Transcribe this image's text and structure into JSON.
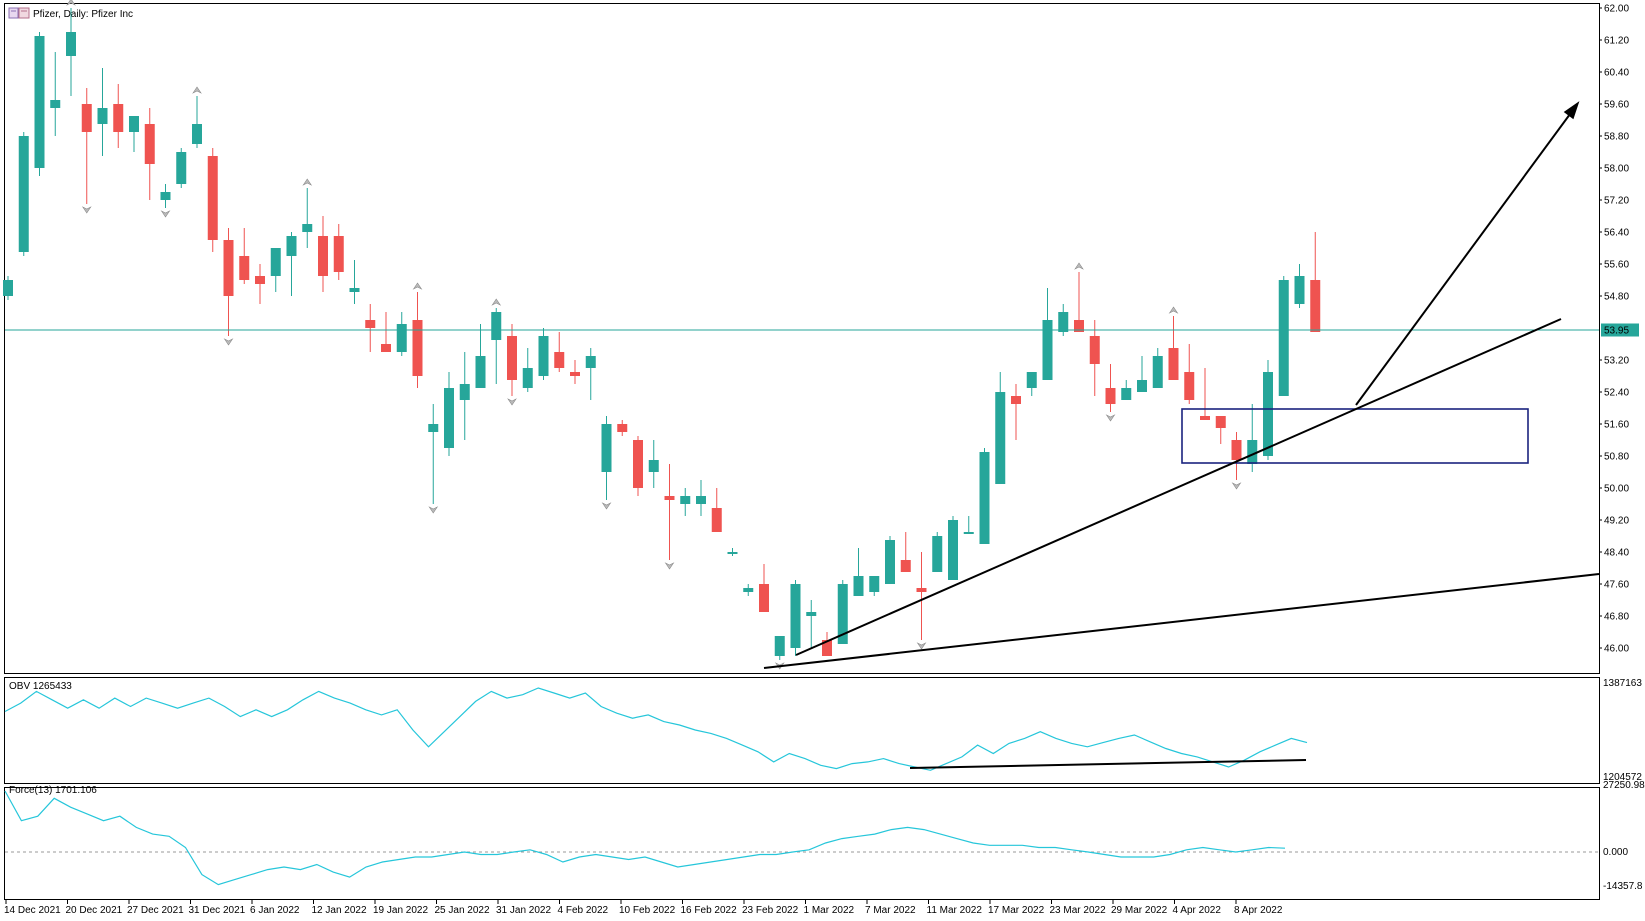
{
  "header": {
    "title": "Pfizer, Daily:  Pfizer Inc"
  },
  "colors": {
    "bull": "#26a69a",
    "bear": "#ef5350",
    "indicator_line": "#26c6da",
    "box": "#1a237e",
    "trendline": "#000000",
    "current_price_bg": "#26a69a"
  },
  "price_axis": {
    "ticks": [
      "62.00",
      "61.20",
      "60.40",
      "59.60",
      "58.80",
      "58.00",
      "57.20",
      "56.40",
      "55.60",
      "54.80",
      "53.20",
      "52.40",
      "51.60",
      "50.80",
      "50.00",
      "49.20",
      "48.40",
      "47.60",
      "46.80",
      "46.00"
    ],
    "current_price": "53.95"
  },
  "x_axis": {
    "ticks": [
      "14 Dec 2021",
      "20 Dec 2021",
      "27 Dec 2021",
      "31 Dec 2021",
      "6 Jan 2022",
      "12 Jan 2022",
      "19 Jan 2022",
      "25 Jan 2022",
      "31 Jan 2022",
      "4 Feb 2022",
      "10 Feb 2022",
      "16 Feb 2022",
      "23 Feb 2022",
      "1 Mar 2022",
      "7 Mar 2022",
      "11 Mar 2022",
      "17 Mar 2022",
      "23 Mar 2022",
      "29 Mar 2022",
      "4 Apr 2022",
      "8 Apr 2022"
    ]
  },
  "obv_panel": {
    "label": "OBV 1265433",
    "axis_top": "1387163",
    "axis_bottom": "1204572"
  },
  "force_panel": {
    "label": "Force(13) 1701.106",
    "axis_top": "27250.98",
    "axis_mid": "0.000",
    "axis_bottom": "-14357.8"
  },
  "chart_data": {
    "type": "candlestick",
    "title": "Pfizer, Daily:  Pfizer Inc",
    "ylim": [
      45.6,
      62.0
    ],
    "horizontal_line": 53.95,
    "candles": [
      {
        "o": 54.8,
        "h": 55.3,
        "l": 54.7,
        "c": 55.2
      },
      {
        "o": 55.9,
        "h": 58.9,
        "l": 55.8,
        "c": 58.8
      },
      {
        "o": 58.0,
        "h": 61.4,
        "l": 57.8,
        "c": 61.3
      },
      {
        "o": 59.5,
        "h": 60.9,
        "l": 58.8,
        "c": 59.7
      },
      {
        "o": 60.8,
        "h": 62.0,
        "l": 59.8,
        "c": 61.4
      },
      {
        "o": 59.6,
        "h": 60.0,
        "l": 57.1,
        "c": 58.9
      },
      {
        "o": 59.1,
        "h": 60.5,
        "l": 58.3,
        "c": 59.5
      },
      {
        "o": 59.6,
        "h": 60.1,
        "l": 58.5,
        "c": 58.9
      },
      {
        "o": 58.9,
        "h": 59.3,
        "l": 58.4,
        "c": 59.3
      },
      {
        "o": 59.1,
        "h": 59.5,
        "l": 57.2,
        "c": 58.1
      },
      {
        "o": 57.2,
        "h": 57.6,
        "l": 57.0,
        "c": 57.4
      },
      {
        "o": 57.6,
        "h": 58.5,
        "l": 57.5,
        "c": 58.4
      },
      {
        "o": 58.6,
        "h": 59.8,
        "l": 58.5,
        "c": 59.1
      },
      {
        "o": 58.3,
        "h": 58.5,
        "l": 55.9,
        "c": 56.2
      },
      {
        "o": 56.2,
        "h": 56.5,
        "l": 53.8,
        "c": 54.8
      },
      {
        "o": 55.8,
        "h": 56.5,
        "l": 55.1,
        "c": 55.2
      },
      {
        "o": 55.3,
        "h": 55.6,
        "l": 54.6,
        "c": 55.1
      },
      {
        "o": 55.3,
        "h": 56.0,
        "l": 54.9,
        "c": 56.0
      },
      {
        "o": 55.8,
        "h": 56.4,
        "l": 54.8,
        "c": 56.3
      },
      {
        "o": 56.4,
        "h": 57.5,
        "l": 56.0,
        "c": 56.6
      },
      {
        "o": 56.3,
        "h": 56.8,
        "l": 54.9,
        "c": 55.3
      },
      {
        "o": 56.3,
        "h": 56.6,
        "l": 55.2,
        "c": 55.4
      },
      {
        "o": 54.9,
        "h": 55.7,
        "l": 54.6,
        "c": 55.0
      },
      {
        "o": 54.2,
        "h": 54.6,
        "l": 53.4,
        "c": 54.0
      },
      {
        "o": 53.6,
        "h": 54.4,
        "l": 53.4,
        "c": 53.4
      },
      {
        "o": 53.4,
        "h": 54.4,
        "l": 53.3,
        "c": 54.1
      },
      {
        "o": 54.2,
        "h": 54.9,
        "l": 52.5,
        "c": 52.8
      },
      {
        "o": 51.4,
        "h": 52.1,
        "l": 49.6,
        "c": 51.6
      },
      {
        "o": 51.0,
        "h": 52.9,
        "l": 50.8,
        "c": 52.5
      },
      {
        "o": 52.2,
        "h": 53.4,
        "l": 51.2,
        "c": 52.6
      },
      {
        "o": 52.5,
        "h": 54.1,
        "l": 52.5,
        "c": 53.3
      },
      {
        "o": 53.7,
        "h": 54.5,
        "l": 52.6,
        "c": 54.4
      },
      {
        "o": 53.8,
        "h": 54.1,
        "l": 52.3,
        "c": 52.7
      },
      {
        "o": 52.5,
        "h": 53.5,
        "l": 52.4,
        "c": 53.0
      },
      {
        "o": 52.8,
        "h": 54.0,
        "l": 52.7,
        "c": 53.8
      },
      {
        "o": 53.4,
        "h": 53.9,
        "l": 52.9,
        "c": 53.0
      },
      {
        "o": 52.9,
        "h": 53.2,
        "l": 52.6,
        "c": 52.8
      },
      {
        "o": 53.0,
        "h": 53.5,
        "l": 52.2,
        "c": 53.3
      },
      {
        "o": 50.4,
        "h": 51.8,
        "l": 49.7,
        "c": 51.6
      },
      {
        "o": 51.6,
        "h": 51.7,
        "l": 51.3,
        "c": 51.4
      },
      {
        "o": 51.2,
        "h": 51.3,
        "l": 49.8,
        "c": 50.0
      },
      {
        "o": 50.4,
        "h": 51.2,
        "l": 50.0,
        "c": 50.7
      },
      {
        "o": 49.8,
        "h": 50.6,
        "l": 48.2,
        "c": 49.7
      },
      {
        "o": 49.6,
        "h": 50.0,
        "l": 49.3,
        "c": 49.8
      },
      {
        "o": 49.6,
        "h": 50.2,
        "l": 49.3,
        "c": 49.8
      },
      {
        "o": 49.5,
        "h": 50.0,
        "l": 48.9,
        "c": 48.9
      },
      {
        "o": 48.4,
        "h": 48.5,
        "l": 48.3,
        "c": 48.4
      },
      {
        "o": 47.4,
        "h": 47.6,
        "l": 47.3,
        "c": 47.5
      },
      {
        "o": 47.6,
        "h": 48.1,
        "l": 46.9,
        "c": 46.9
      },
      {
        "o": 45.8,
        "h": 46.3,
        "l": 45.7,
        "c": 46.3
      },
      {
        "o": 46.0,
        "h": 47.7,
        "l": 45.8,
        "c": 47.6
      },
      {
        "o": 46.8,
        "h": 47.2,
        "l": 46.0,
        "c": 46.9
      },
      {
        "o": 46.2,
        "h": 46.4,
        "l": 45.8,
        "c": 45.8
      },
      {
        "o": 46.1,
        "h": 47.7,
        "l": 46.1,
        "c": 47.6
      },
      {
        "o": 47.3,
        "h": 48.5,
        "l": 47.3,
        "c": 47.8
      },
      {
        "o": 47.4,
        "h": 47.8,
        "l": 47.3,
        "c": 47.8
      },
      {
        "o": 47.6,
        "h": 48.8,
        "l": 47.6,
        "c": 48.7
      },
      {
        "o": 48.2,
        "h": 48.9,
        "l": 47.9,
        "c": 47.9
      },
      {
        "o": 47.5,
        "h": 48.4,
        "l": 46.2,
        "c": 47.4
      },
      {
        "o": 47.9,
        "h": 48.9,
        "l": 47.9,
        "c": 48.8
      },
      {
        "o": 47.7,
        "h": 49.3,
        "l": 47.7,
        "c": 49.2
      },
      {
        "o": 48.9,
        "h": 49.3,
        "l": 48.9,
        "c": 48.9
      },
      {
        "o": 48.6,
        "h": 51.0,
        "l": 48.6,
        "c": 50.9
      },
      {
        "o": 50.1,
        "h": 52.9,
        "l": 50.1,
        "c": 52.4
      },
      {
        "o": 52.3,
        "h": 52.6,
        "l": 51.2,
        "c": 52.1
      },
      {
        "o": 52.5,
        "h": 52.9,
        "l": 52.3,
        "c": 52.9
      },
      {
        "o": 52.7,
        "h": 55.0,
        "l": 52.7,
        "c": 54.2
      },
      {
        "o": 53.9,
        "h": 54.6,
        "l": 53.8,
        "c": 54.4
      },
      {
        "o": 54.2,
        "h": 55.4,
        "l": 53.9,
        "c": 53.9
      },
      {
        "o": 53.8,
        "h": 54.2,
        "l": 52.3,
        "c": 53.1
      },
      {
        "o": 52.5,
        "h": 53.1,
        "l": 51.9,
        "c": 52.1
      },
      {
        "o": 52.2,
        "h": 52.7,
        "l": 52.2,
        "c": 52.5
      },
      {
        "o": 52.4,
        "h": 53.3,
        "l": 52.4,
        "c": 52.7
      },
      {
        "o": 52.5,
        "h": 53.5,
        "l": 52.5,
        "c": 53.3
      },
      {
        "o": 53.5,
        "h": 54.3,
        "l": 52.7,
        "c": 52.7
      },
      {
        "o": 52.9,
        "h": 53.6,
        "l": 52.1,
        "c": 52.2
      },
      {
        "o": 51.8,
        "h": 53.0,
        "l": 51.8,
        "c": 51.7
      },
      {
        "o": 51.8,
        "h": 51.8,
        "l": 51.1,
        "c": 51.5
      },
      {
        "o": 51.2,
        "h": 51.4,
        "l": 50.2,
        "c": 50.7
      },
      {
        "o": 50.6,
        "h": 52.1,
        "l": 50.4,
        "c": 51.2
      },
      {
        "o": 50.8,
        "h": 53.2,
        "l": 50.7,
        "c": 52.9
      },
      {
        "o": 52.3,
        "h": 55.3,
        "l": 52.3,
        "c": 55.2
      },
      {
        "o": 54.6,
        "h": 55.6,
        "l": 54.5,
        "c": 55.3
      },
      {
        "o": 55.2,
        "h": 56.4,
        "l": 53.9,
        "c": 53.9
      }
    ],
    "obv": [
      0.72,
      0.82,
      0.96,
      0.86,
      0.76,
      0.86,
      0.76,
      0.88,
      0.78,
      0.88,
      0.82,
      0.76,
      0.82,
      0.88,
      0.78,
      0.66,
      0.74,
      0.66,
      0.74,
      0.86,
      0.96,
      0.88,
      0.82,
      0.74,
      0.68,
      0.74,
      0.5,
      0.3,
      0.48,
      0.66,
      0.84,
      0.96,
      0.88,
      0.92,
      1.0,
      0.94,
      0.88,
      0.94,
      0.78,
      0.7,
      0.64,
      0.68,
      0.6,
      0.56,
      0.5,
      0.46,
      0.4,
      0.32,
      0.24,
      0.12,
      0.22,
      0.16,
      0.08,
      0.04,
      0.1,
      0.12,
      0.16,
      0.1,
      0.06,
      0.02,
      0.1,
      0.18,
      0.32,
      0.22,
      0.34,
      0.4,
      0.48,
      0.4,
      0.34,
      0.3,
      0.35,
      0.4,
      0.44,
      0.36,
      0.28,
      0.22,
      0.18,
      0.12,
      0.06,
      0.14,
      0.24,
      0.32,
      0.4,
      0.35
    ],
    "force": [
      27250.98,
      14000,
      16000,
      24000,
      20000,
      17000,
      14000,
      16000,
      11000,
      8000,
      7000,
      2000,
      -9000,
      -13000,
      -11000,
      -9000,
      -7000,
      -6000,
      -7000,
      -5000,
      -8000,
      -10000,
      -6000,
      -4000,
      -3000,
      -2000,
      -2000,
      -1000,
      0,
      -1000,
      -1000,
      0,
      1000,
      -1000,
      -4000,
      -2000,
      -1000,
      -2000,
      -3000,
      -2000,
      -4000,
      -6000,
      -5000,
      -4000,
      -3000,
      -2000,
      -1000,
      -1000,
      0,
      1000,
      4000,
      6000,
      7000,
      8000,
      10000,
      11000,
      10000,
      8000,
      6000,
      4000,
      3000,
      3000,
      3000,
      2000,
      2000,
      1000,
      0,
      -1000,
      -2000,
      -2000,
      -2000,
      -1000,
      1000,
      2000,
      1000,
      0,
      1000,
      2000,
      1701.106
    ]
  },
  "annotations": {
    "fractal_up_markers": "gray-chevron-up",
    "fractal_down_markers": "gray-chevron-down"
  }
}
